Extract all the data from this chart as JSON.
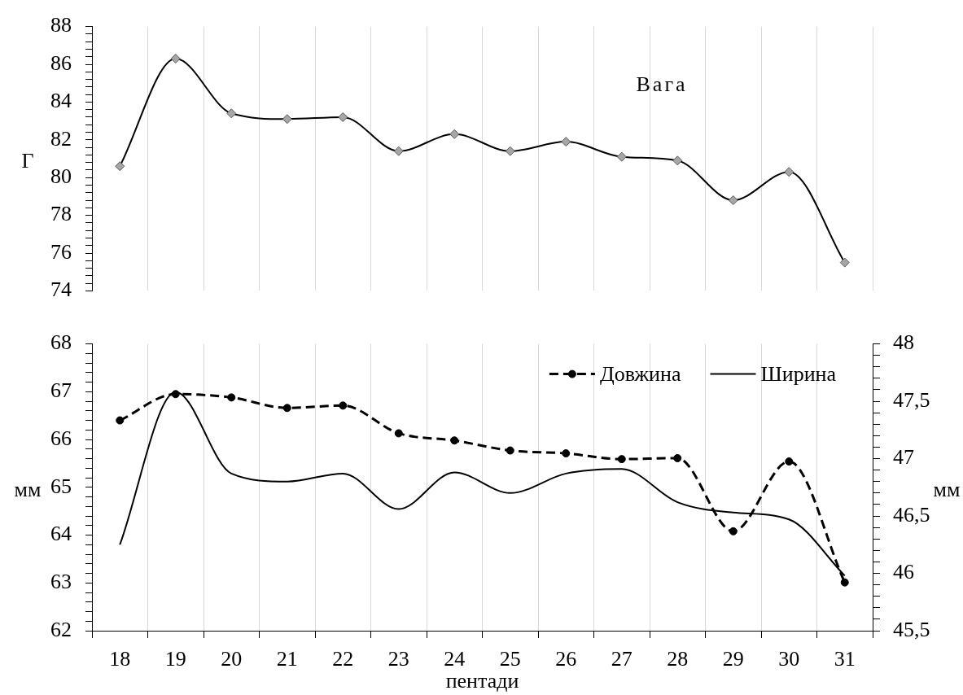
{
  "chart_data": [
    {
      "type": "line",
      "title": "Вага",
      "ylabel": "Г",
      "categories": [
        "18",
        "19",
        "20",
        "21",
        "22",
        "23",
        "24",
        "25",
        "26",
        "27",
        "28",
        "29",
        "30",
        "31"
      ],
      "series": [
        {
          "color": "#000000",
          "values": [
            80.6,
            86.3,
            83.4,
            83.1,
            83.2,
            81.4,
            82.3,
            81.4,
            81.9,
            81.1,
            80.9,
            78.8,
            80.3,
            75.5
          ]
        }
      ],
      "marker": "diamond",
      "line_style": "solid",
      "ylim": [
        74,
        88
      ],
      "yticks": [
        74,
        {
          "value": 74.4,
          "label": null
        },
        {
          "value": 74.8,
          "label": null
        },
        {
          "value": 75.2,
          "label": null
        },
        {
          "value": 75.6,
          "label": null
        },
        76,
        {
          "value": 76.4,
          "label": null
        },
        {
          "value": 76.8,
          "label": null
        },
        {
          "value": 77.2,
          "label": null
        },
        {
          "value": 77.6,
          "label": null
        },
        78,
        {
          "value": 78.4,
          "label": null
        },
        {
          "value": 78.8,
          "label": null
        },
        {
          "value": 79.2,
          "label": null
        },
        {
          "value": 79.6,
          "label": null
        },
        80,
        {
          "value": 80.4,
          "label": null
        },
        {
          "value": 80.8,
          "label": null
        },
        {
          "value": 81.2,
          "label": null
        },
        {
          "value": 81.6,
          "label": null
        },
        82,
        {
          "value": 82.4,
          "label": null
        },
        {
          "value": 82.8,
          "label": null
        },
        {
          "value": 83.2,
          "label": null
        },
        {
          "value": 83.6,
          "label": null
        },
        84,
        {
          "value": 84.4,
          "label": null
        },
        {
          "value": 84.8,
          "label": null
        },
        {
          "value": 85.2,
          "label": null
        },
        {
          "value": 85.6,
          "label": null
        },
        86,
        {
          "value": 86.4,
          "label": null
        },
        {
          "value": 86.8,
          "label": null
        },
        {
          "value": 87.2,
          "label": null
        },
        {
          "value": 87.6,
          "label": null
        },
        88
      ],
      "grid": "x",
      "tick_labels": "y"
    },
    {
      "type": "line",
      "xlabel": "пентади",
      "ylabel": "мм",
      "y2label": "мм",
      "categories": [
        "18",
        "19",
        "20",
        "21",
        "22",
        "23",
        "24",
        "25",
        "26",
        "27",
        "28",
        "29",
        "30",
        "31"
      ],
      "series": [
        {
          "name": "Довжина",
          "color": "#000000",
          "marker": "circle",
          "line_style": "dashed",
          "values": [
            66.4,
            66.95,
            66.88,
            66.66,
            66.71,
            66.13,
            65.98,
            65.77,
            65.71,
            65.59,
            65.61,
            64.08,
            65.54,
            63.01
          ]
        },
        {
          "name": "Ширина",
          "color": "#000000",
          "marker": "none",
          "line_style": "solid",
          "axis": "y2",
          "values": [
            46.25,
            47.58,
            46.87,
            46.8,
            46.87,
            46.56,
            46.88,
            46.7,
            46.87,
            46.91,
            46.62,
            46.53,
            46.47,
            45.98
          ]
        }
      ],
      "ylim": [
        62,
        68
      ],
      "yticks": [
        62,
        {
          "value": 62.2,
          "label": null
        },
        {
          "value": 62.4,
          "label": null
        },
        {
          "value": 62.6,
          "label": null
        },
        {
          "value": 62.8,
          "label": null
        },
        63,
        {
          "value": 63.2,
          "label": null
        },
        {
          "value": 63.4,
          "label": null
        },
        {
          "value": 63.6,
          "label": null
        },
        {
          "value": 63.8,
          "label": null
        },
        64,
        {
          "value": 64.2,
          "label": null
        },
        {
          "value": 64.4,
          "label": null
        },
        {
          "value": 64.6,
          "label": null
        },
        {
          "value": 64.8,
          "label": null
        },
        65,
        {
          "value": 65.2,
          "label": null
        },
        {
          "value": 65.4,
          "label": null
        },
        {
          "value": 65.6,
          "label": null
        },
        {
          "value": 65.8,
          "label": null
        },
        66,
        {
          "value": 66.2,
          "label": null
        },
        {
          "value": 66.4,
          "label": null
        },
        {
          "value": 66.6,
          "label": null
        },
        {
          "value": 66.8,
          "label": null
        },
        67,
        {
          "value": 67.2,
          "label": null
        },
        {
          "value": 67.4,
          "label": null
        },
        {
          "value": 67.6,
          "label": null
        },
        {
          "value": 67.8,
          "label": null
        },
        68
      ],
      "y2lim": [
        45.5,
        48
      ],
      "y2ticks": [
        {
          "value": 45.5,
          "label": "45,5"
        },
        {
          "value": 45.6,
          "label": null
        },
        {
          "value": 45.7,
          "label": null
        },
        {
          "value": 45.8,
          "label": null
        },
        {
          "value": 45.9,
          "label": null
        },
        46,
        {
          "value": 46.1,
          "label": null
        },
        {
          "value": 46.2,
          "label": null
        },
        {
          "value": 46.3,
          "label": null
        },
        {
          "value": 46.4,
          "label": null
        },
        {
          "value": 46.5,
          "label": "46,5"
        },
        {
          "value": 46.6,
          "label": null
        },
        {
          "value": 46.7,
          "label": null
        },
        {
          "value": 46.8,
          "label": null
        },
        {
          "value": 46.9,
          "label": null
        },
        47,
        {
          "value": 47.1,
          "label": null
        },
        {
          "value": 47.2,
          "label": null
        },
        {
          "value": 47.3,
          "label": null
        },
        {
          "value": 47.4,
          "label": null
        },
        {
          "value": 47.5,
          "label": "47,5"
        },
        {
          "value": 47.6,
          "label": null
        },
        {
          "value": 47.7,
          "label": null
        },
        {
          "value": 47.8,
          "label": null
        },
        {
          "value": 47.9,
          "label": null
        },
        48
      ],
      "grid": "x",
      "legend": "top right"
    }
  ]
}
